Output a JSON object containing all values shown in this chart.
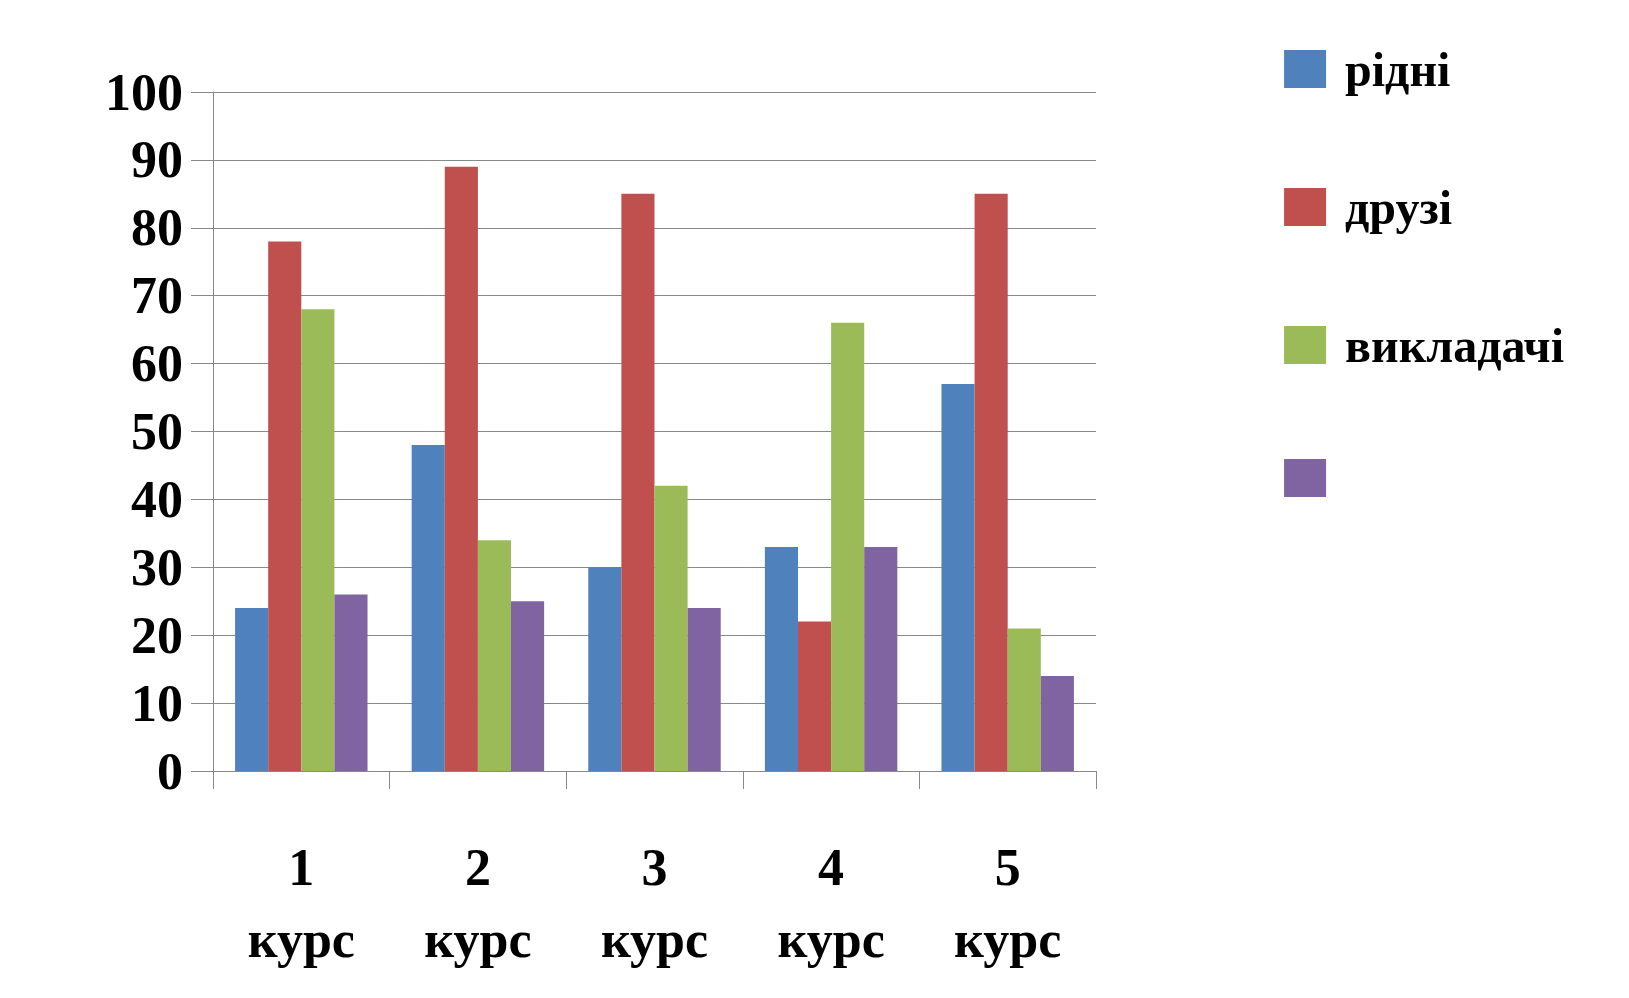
{
  "chart_data": {
    "type": "bar",
    "categories": [
      "1 курс",
      "2 курс",
      "3 курс",
      "4 курс",
      "5 курс"
    ],
    "series": [
      {
        "name": "рідні",
        "color": "#4f81bd",
        "values": [
          24,
          48,
          30,
          33,
          57
        ]
      },
      {
        "name": "друзі",
        "color": "#c0504d",
        "values": [
          78,
          89,
          85,
          22,
          85
        ]
      },
      {
        "name": "викладачі",
        "color": "#9bbb59",
        "values": [
          68,
          34,
          42,
          66,
          21
        ]
      },
      {
        "color": "#8064a2",
        "values": [
          26,
          25,
          24,
          33,
          14
        ]
      }
    ],
    "ylim": [
      0,
      100
    ],
    "yticks": [
      0,
      10,
      20,
      30,
      40,
      50,
      60,
      70,
      80,
      90,
      100
    ],
    "grid": "y",
    "legend": "top right"
  }
}
